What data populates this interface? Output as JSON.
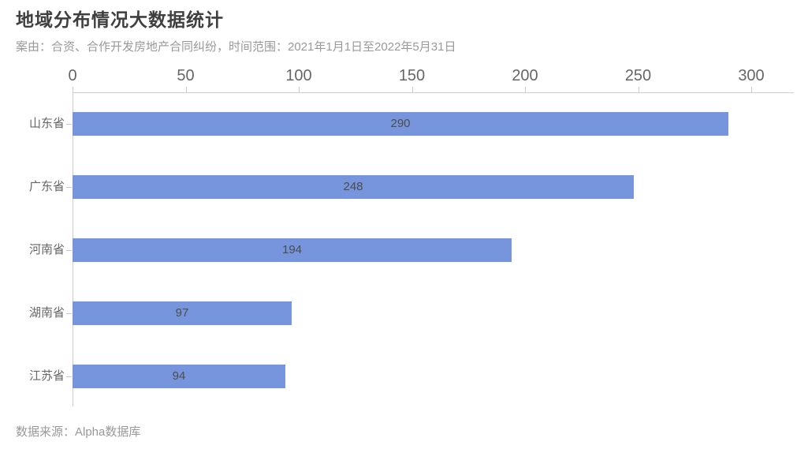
{
  "header": {
    "title": "地域分布情况大数据统计",
    "subtitle": "案由：合资、合作开发房地产合同纠纷，时间范围：2021年1月1日至2022年5月31日"
  },
  "footer": {
    "source": "数据来源：Alpha数据库"
  },
  "colors": {
    "bar": "#7795dc",
    "axis_line": "#cccccc",
    "title": "#3f3f3f",
    "subtitle": "#999999",
    "axis_label": "#666666",
    "category_label": "#666666",
    "value_label": "#4d4d4d",
    "source_text": "#999999"
  },
  "chart_data": {
    "type": "bar",
    "orientation": "horizontal",
    "title": "地域分布情况大数据统计",
    "categories": [
      "山东省",
      "广东省",
      "河南省",
      "湖南省",
      "江苏省"
    ],
    "values": [
      290,
      248,
      194,
      97,
      94
    ],
    "x_ticks": [
      0,
      50,
      100,
      150,
      200,
      250,
      300
    ],
    "xlim": [
      0,
      318
    ],
    "xlabel": "",
    "ylabel": "",
    "axis_position": "top",
    "value_labels": "inside-center",
    "grid": false,
    "legend": false
  }
}
